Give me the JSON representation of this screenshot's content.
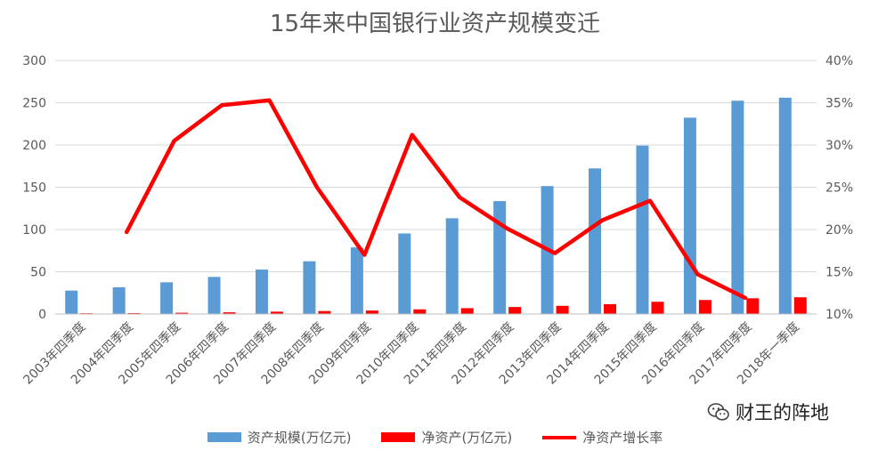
{
  "chart_data": {
    "type": "bar",
    "title": "15年来中国银行业资产规模变迁",
    "categories": [
      "2003年四季度",
      "2004年四季度",
      "2005年四季度",
      "2006年四季度",
      "2007年四季度",
      "2008年四季度",
      "2009年四季度",
      "2010年四季度",
      "2011年四季度",
      "2012年四季度",
      "2013年四季度",
      "2014年四季度",
      "2015年四季度",
      "2016年四季度",
      "2017年四季度",
      "2018年一季度"
    ],
    "y_left": {
      "min": 0,
      "max": 300,
      "ticks": [
        "0",
        "50",
        "100",
        "150",
        "200",
        "250",
        "300"
      ]
    },
    "y_right": {
      "min": 10,
      "max": 40,
      "ticks": [
        "10%",
        "15%",
        "20%",
        "25%",
        "30%",
        "35%",
        "40%"
      ]
    },
    "grid": true,
    "legend_position": "bottom",
    "series": [
      {
        "name": "资产规模(万亿元)",
        "type": "bar",
        "axis": "left",
        "color": "#5B9BD5",
        "values": [
          27.7,
          31.6,
          37.5,
          43.9,
          52.6,
          62.4,
          78.8,
          95.3,
          113.3,
          133.6,
          151.4,
          172.3,
          199.3,
          232.3,
          252.4,
          256.0
        ]
      },
      {
        "name": "净资产(万亿元)",
        "type": "bar",
        "axis": "left",
        "color": "#FF0000",
        "values": [
          0.9,
          1.1,
          1.5,
          2.0,
          2.8,
          3.5,
          4.1,
          5.5,
          6.9,
          8.3,
          9.7,
          11.7,
          14.5,
          16.6,
          18.6,
          19.8
        ]
      },
      {
        "name": "净资产增长率",
        "type": "line",
        "axis": "right",
        "color": "#FF0000",
        "values": [
          null,
          19.7,
          30.5,
          34.7,
          35.3,
          25.0,
          17.0,
          31.2,
          23.8,
          20.1,
          17.2,
          21.1,
          23.4,
          14.7,
          11.9,
          null
        ]
      }
    ]
  },
  "watermark": {
    "text": "财王的阵地",
    "icon": "wechat-icon"
  }
}
